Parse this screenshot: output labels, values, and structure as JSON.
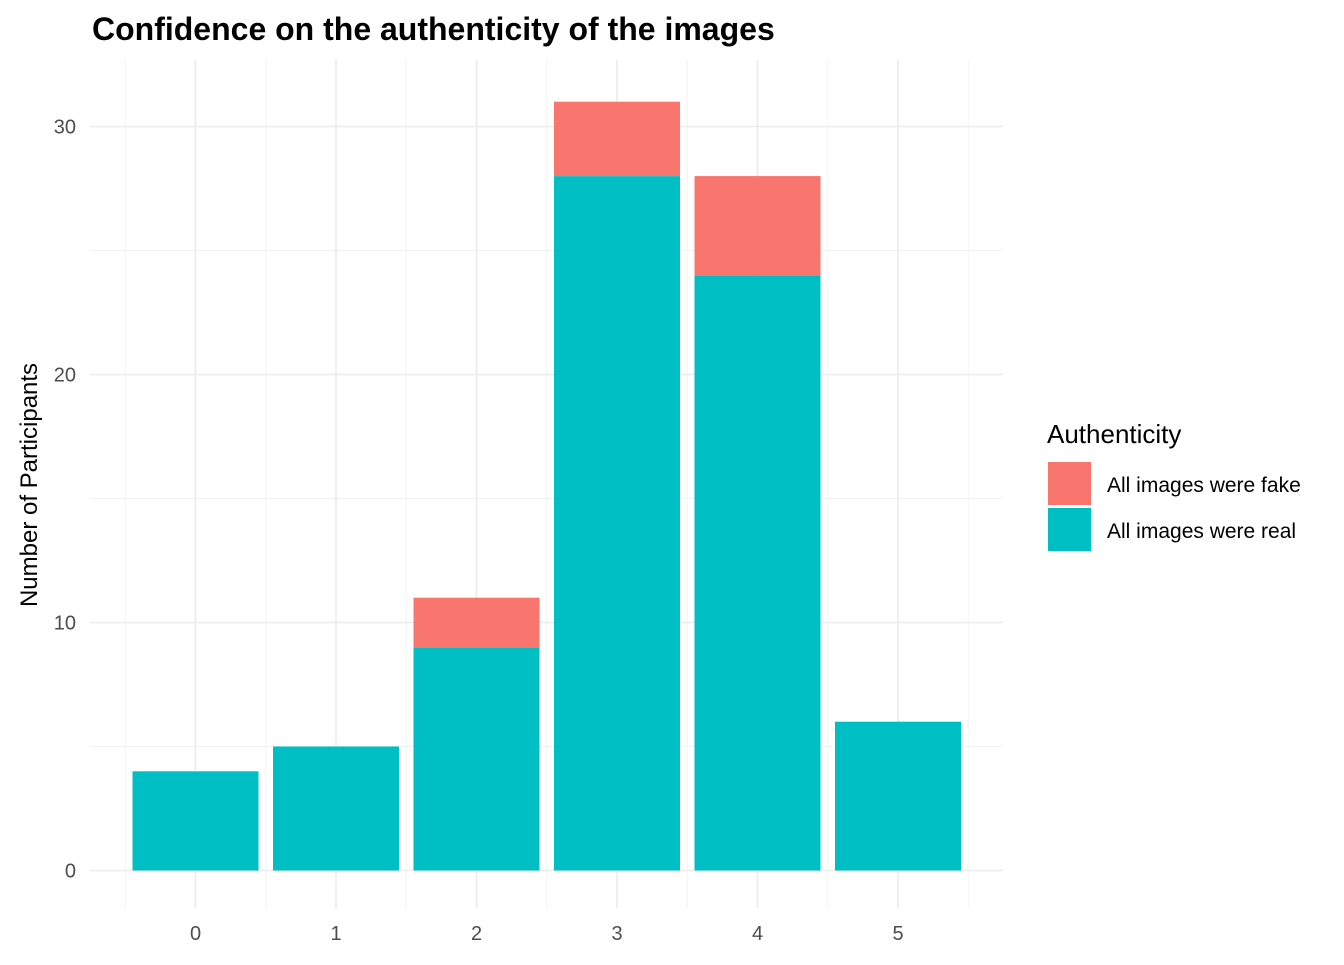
{
  "chart_data": {
    "type": "bar",
    "stacked": true,
    "title": "Confidence on the authenticity of the images",
    "xlabel": "",
    "ylabel": "Number of Participants",
    "categories": [
      "0",
      "1",
      "2",
      "3",
      "4",
      "5"
    ],
    "ylim": [
      0,
      31
    ],
    "yticks": [
      0,
      10,
      20,
      30
    ],
    "grid": true,
    "legend": {
      "title": "Authenticity",
      "position": "right"
    },
    "series": [
      {
        "name": "All images were real",
        "color": "#00BFC4",
        "values": [
          4,
          5,
          9,
          28,
          24,
          6
        ]
      },
      {
        "name": "All images were fake",
        "color": "#F8766D",
        "values": [
          0,
          0,
          2,
          3,
          4,
          0
        ]
      }
    ]
  }
}
